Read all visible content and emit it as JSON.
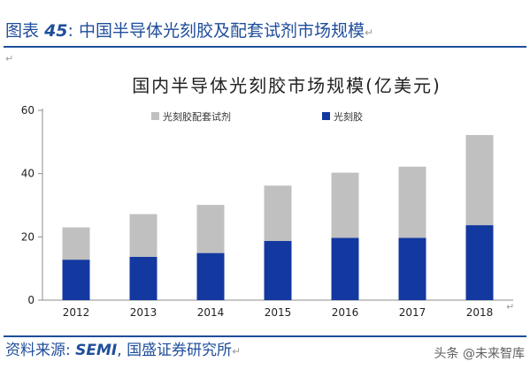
{
  "figure": {
    "prefix": "图表",
    "number": "45",
    "colon": ":",
    "title": "中国半导体光刻胶及配套试剂市场规模",
    "mark": "↵"
  },
  "source": {
    "label": "资料来源:",
    "name": "SEMI",
    "sep": ",",
    "org": "国盛证券研究所",
    "mark": "↵"
  },
  "paragraph_marks": {
    "top": "↵",
    "bottom": "↵"
  },
  "watermark": "头条 @未来智库",
  "colors": {
    "accent": "#1f4e9a",
    "photoresist": "#1339a0",
    "reagents": "#c0c0c0",
    "axis": "#8c8c8c"
  },
  "chart_data": {
    "type": "bar",
    "stacked": true,
    "title": "国内半导体光刻胶市场规模(亿美元)",
    "xlabel": "",
    "ylabel": "",
    "categories": [
      "2012",
      "2013",
      "2014",
      "2015",
      "2016",
      "2017",
      "2018"
    ],
    "series": [
      {
        "name": "光刻胶",
        "color": "#1339a0",
        "values": [
          12.8,
          13.7,
          14.9,
          18.7,
          19.7,
          19.7,
          23.7
        ]
      },
      {
        "name": "光刻胶配套试剂",
        "color": "#c0c0c0",
        "values": [
          10.2,
          13.5,
          15.2,
          17.5,
          20.6,
          22.5,
          28.5
        ]
      }
    ],
    "ylim": [
      0,
      60
    ],
    "yticks": [
      0,
      20,
      40,
      60
    ],
    "grid": false,
    "legend": "top"
  }
}
